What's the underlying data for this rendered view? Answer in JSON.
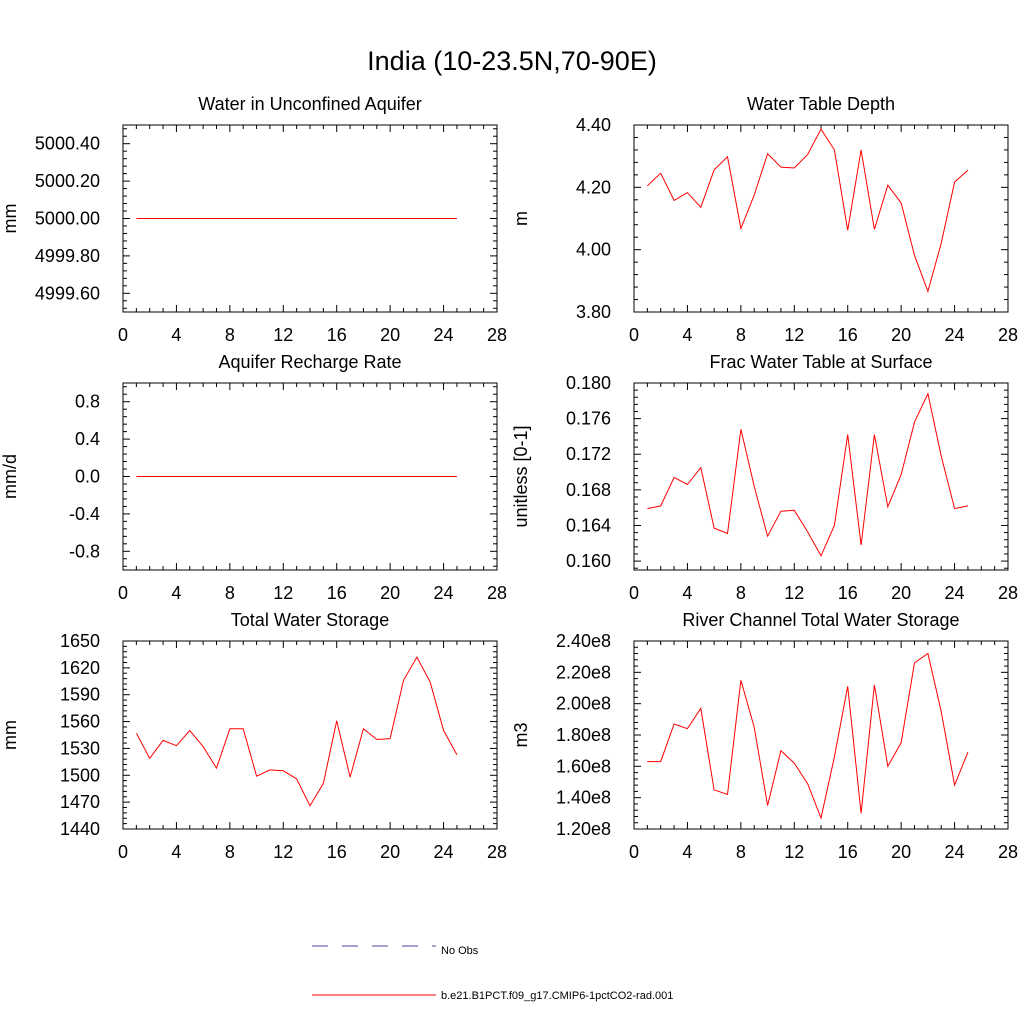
{
  "title": "India (10-23.5N,70-90E)",
  "colors": {
    "model": "#ff0000",
    "obs": "#4a4aa8",
    "axis": "#000000"
  },
  "legend": {
    "obs_label": "No Obs",
    "model_label": "b.e21.B1PCT.f09_g17.CMIP6-1pctCO2-rad.001"
  },
  "chart_data": [
    {
      "type": "line",
      "title": "Water in Unconfined Aquifer",
      "xlabel": "",
      "ylabel": "mm",
      "xlim": [
        0,
        28
      ],
      "ylim": [
        4999.5,
        5000.5
      ],
      "xticks": [
        0,
        4,
        8,
        12,
        16,
        20,
        24,
        28
      ],
      "yticks": [
        4999.6,
        4999.8,
        5000.0,
        5000.2,
        5000.4
      ],
      "ytick_labels": [
        "4999.60",
        "4999.80",
        "5000.00",
        "5000.20",
        "5000.40"
      ],
      "x": [
        1,
        2,
        3,
        4,
        5,
        6,
        7,
        8,
        9,
        10,
        11,
        12,
        13,
        14,
        15,
        16,
        17,
        18,
        19,
        20,
        21,
        22,
        23,
        24,
        25
      ],
      "series": [
        {
          "values": [
            5000,
            5000,
            5000,
            5000,
            5000,
            5000,
            5000,
            5000,
            5000,
            5000,
            5000,
            5000,
            5000,
            5000,
            5000,
            5000,
            5000,
            5000,
            5000,
            5000,
            5000,
            5000,
            5000,
            5000,
            5000
          ]
        }
      ]
    },
    {
      "type": "line",
      "title": "Water Table Depth",
      "xlabel": "",
      "ylabel": "m",
      "xlim": [
        0,
        28
      ],
      "ylim": [
        3.8,
        4.4
      ],
      "xticks": [
        0,
        4,
        8,
        12,
        16,
        20,
        24,
        28
      ],
      "yticks": [
        3.8,
        4.0,
        4.2,
        4.4
      ],
      "ytick_labels": [
        "3.80",
        "4.00",
        "4.20",
        "4.40"
      ],
      "x": [
        1,
        2,
        3,
        4,
        5,
        6,
        7,
        8,
        9,
        10,
        11,
        12,
        13,
        14,
        15,
        16,
        17,
        18,
        19,
        20,
        21,
        22,
        23,
        24,
        25
      ],
      "series": [
        {
          "values": [
            4.205,
            4.245,
            4.158,
            4.183,
            4.136,
            4.256,
            4.298,
            4.068,
            4.175,
            4.308,
            4.265,
            4.262,
            4.305,
            4.387,
            4.32,
            4.062,
            4.32,
            4.065,
            4.207,
            4.15,
            3.982,
            3.866,
            4.02,
            4.217,
            4.255
          ]
        }
      ]
    },
    {
      "type": "line",
      "title": "Aquifer Recharge Rate",
      "xlabel": "",
      "ylabel": "mm/d",
      "xlim": [
        0,
        28
      ],
      "ylim": [
        -1.0,
        1.0
      ],
      "xticks": [
        0,
        4,
        8,
        12,
        16,
        20,
        24,
        28
      ],
      "yticks": [
        -0.8,
        -0.4,
        0.0,
        0.4,
        0.8
      ],
      "ytick_labels": [
        "-0.8",
        "-0.4",
        "0.0",
        "0.4",
        "0.8"
      ],
      "x": [
        1,
        2,
        3,
        4,
        5,
        6,
        7,
        8,
        9,
        10,
        11,
        12,
        13,
        14,
        15,
        16,
        17,
        18,
        19,
        20,
        21,
        22,
        23,
        24,
        25
      ],
      "series": [
        {
          "values": [
            0,
            0,
            0,
            0,
            0,
            0,
            0,
            0,
            0,
            0,
            0,
            0,
            0,
            0,
            0,
            0,
            0,
            0,
            0,
            0,
            0,
            0,
            0,
            0,
            0
          ]
        }
      ]
    },
    {
      "type": "line",
      "title": "Frac Water Table at Surface",
      "xlabel": "",
      "ylabel": "unitless [0-1]",
      "xlim": [
        0,
        28
      ],
      "ylim": [
        0.159,
        0.18
      ],
      "xticks": [
        0,
        4,
        8,
        12,
        16,
        20,
        24,
        28
      ],
      "yticks": [
        0.16,
        0.164,
        0.168,
        0.172,
        0.176,
        0.18
      ],
      "ytick_labels": [
        "0.160",
        "0.164",
        "0.168",
        "0.172",
        "0.176",
        "0.180"
      ],
      "x": [
        1,
        2,
        3,
        4,
        5,
        6,
        7,
        8,
        9,
        10,
        11,
        12,
        13,
        14,
        15,
        16,
        17,
        18,
        19,
        20,
        21,
        22,
        23,
        24,
        25
      ],
      "series": [
        {
          "values": [
            0.1659,
            0.1662,
            0.1694,
            0.1686,
            0.1705,
            0.1637,
            0.1631,
            0.1748,
            0.1684,
            0.1628,
            0.1656,
            0.1657,
            0.1633,
            0.1606,
            0.164,
            0.1742,
            0.1618,
            0.1742,
            0.1661,
            0.1697,
            0.1756,
            0.1788,
            0.1718,
            0.1659,
            0.1662
          ]
        }
      ]
    },
    {
      "type": "line",
      "title": "Total Water Storage",
      "xlabel": "",
      "ylabel": "mm",
      "xlim": [
        0,
        28
      ],
      "ylim": [
        1440,
        1650
      ],
      "xticks": [
        0,
        4,
        8,
        12,
        16,
        20,
        24,
        28
      ],
      "yticks": [
        1440,
        1470,
        1500,
        1530,
        1560,
        1590,
        1620,
        1650
      ],
      "ytick_labels": [
        "1440",
        "1470",
        "1500",
        "1530",
        "1560",
        "1590",
        "1620",
        "1650"
      ],
      "x": [
        1,
        2,
        3,
        4,
        5,
        6,
        7,
        8,
        9,
        10,
        11,
        12,
        13,
        14,
        15,
        16,
        17,
        18,
        19,
        20,
        21,
        22,
        23,
        24,
        25
      ],
      "series": [
        {
          "values": [
            1547,
            1519,
            1539,
            1533,
            1550,
            1532,
            1508,
            1552,
            1552,
            1499,
            1506,
            1505,
            1496,
            1466,
            1491,
            1561,
            1498,
            1552,
            1540,
            1541,
            1606,
            1632,
            1604,
            1550,
            1523
          ]
        }
      ]
    },
    {
      "type": "line",
      "title": "River Channel Total Water Storage",
      "xlabel": "",
      "ylabel": "m3",
      "xlim": [
        0,
        28
      ],
      "ylim": [
        120000000.0,
        240000000.0
      ],
      "xticks": [
        0,
        4,
        8,
        12,
        16,
        20,
        24,
        28
      ],
      "yticks": [
        120000000.0,
        140000000.0,
        160000000.0,
        180000000.0,
        200000000.0,
        220000000.0,
        240000000.0
      ],
      "ytick_labels": [
        "1.20e8",
        "1.40e8",
        "1.60e8",
        "1.80e8",
        "2.00e8",
        "2.20e8",
        "2.40e8"
      ],
      "x": [
        1,
        2,
        3,
        4,
        5,
        6,
        7,
        8,
        9,
        10,
        11,
        12,
        13,
        14,
        15,
        16,
        17,
        18,
        19,
        20,
        21,
        22,
        23,
        24,
        25
      ],
      "series": [
        {
          "values": [
            163000000.0,
            163000000.0,
            187000000.0,
            184000000.0,
            197000000.0,
            145000000.0,
            142000000.0,
            215000000.0,
            185000000.0,
            135000000.0,
            170000000.0,
            162000000.0,
            149000000.0,
            127000000.0,
            166000000.0,
            211000000.0,
            130000000.0,
            212000000.0,
            160000000.0,
            175000000.0,
            226000000.0,
            232000000.0,
            195000000.0,
            148000000.0,
            169000000.0
          ]
        }
      ]
    }
  ]
}
